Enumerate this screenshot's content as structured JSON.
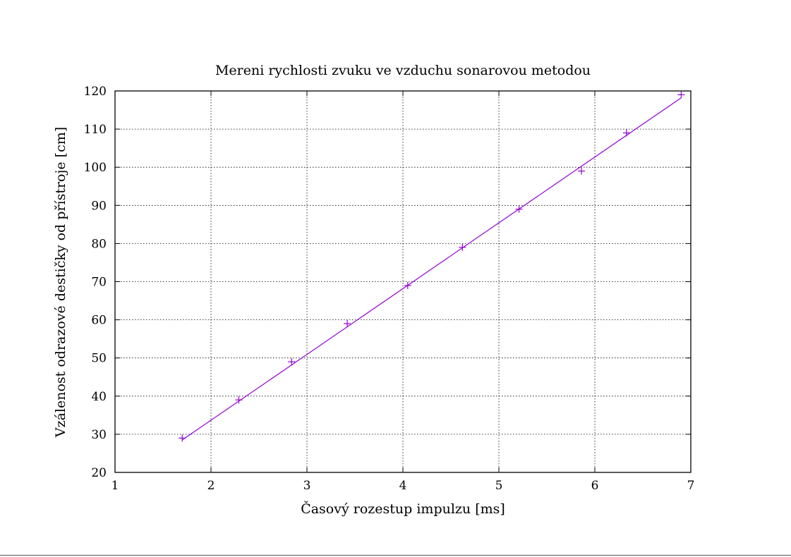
{
  "chart_data": {
    "type": "scatter",
    "title": "Mereni rychlosti zvuku ve vzduchu sonarovou metodou",
    "xlabel": "Časový rozestup impulzu [ms]",
    "ylabel": "Vzálenost odrazové destičky od přístroje [cm]",
    "xlim": [
      1,
      7
    ],
    "ylim": [
      20,
      120
    ],
    "xticks": [
      "1",
      "2",
      "3",
      "4",
      "5",
      "6",
      "7"
    ],
    "yticks": [
      "20",
      "30",
      "40",
      "50",
      "60",
      "70",
      "80",
      "90",
      "100",
      "110",
      "120"
    ],
    "grid": true,
    "legend": "none",
    "series": [
      {
        "kind": "points",
        "marker": "+",
        "color": "#9400d3",
        "points": [
          {
            "x": 1.7,
            "y": 29
          },
          {
            "x": 2.29,
            "y": 39
          },
          {
            "x": 2.84,
            "y": 49
          },
          {
            "x": 3.42,
            "y": 59
          },
          {
            "x": 4.05,
            "y": 69
          },
          {
            "x": 4.62,
            "y": 79
          },
          {
            "x": 5.21,
            "y": 89
          },
          {
            "x": 5.86,
            "y": 99
          },
          {
            "x": 6.33,
            "y": 109
          },
          {
            "x": 6.9,
            "y": 119
          }
        ]
      },
      {
        "kind": "fit-line",
        "color": "#9400d3",
        "points": [
          {
            "x": 1.7,
            "y": 28.5
          },
          {
            "x": 6.9,
            "y": 118.2
          }
        ]
      }
    ]
  }
}
